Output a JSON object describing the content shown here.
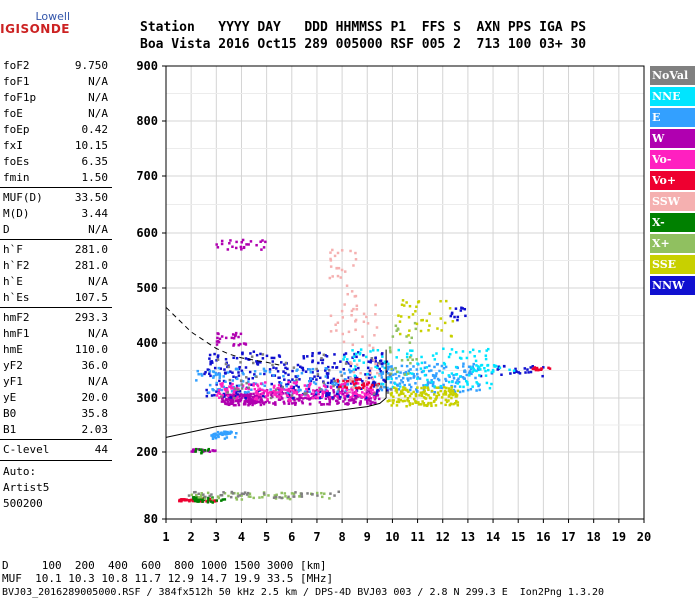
{
  "logo": {
    "line1": "Lowell",
    "line2": "DIGISONDE"
  },
  "header": {
    "labels_line": "Station   YYYY DAY   DDD HHMMSS P1  FFS S  AXN PPS IGA PS",
    "values_line": "Boa Vista 2016 Oct15 289 005000 RSF 005 2  713 100 03+ 30"
  },
  "params": {
    "group1": [
      {
        "name": "foF2",
        "value": "9.750"
      },
      {
        "name": "foF1",
        "value": "N/A"
      },
      {
        "name": "foF1p",
        "value": "N/A"
      },
      {
        "name": "foE",
        "value": "N/A"
      },
      {
        "name": "foEp",
        "value": "0.42"
      },
      {
        "name": "fxI",
        "value": "10.15"
      },
      {
        "name": "foEs",
        "value": "6.35"
      },
      {
        "name": "fmin",
        "value": "1.50"
      }
    ],
    "group2": [
      {
        "name": "MUF(D)",
        "value": "33.50"
      },
      {
        "name": "M(D)",
        "value": "3.44"
      },
      {
        "name": "D",
        "value": "N/A"
      }
    ],
    "group3": [
      {
        "name": "h`F",
        "value": "281.0"
      },
      {
        "name": "h`F2",
        "value": "281.0"
      },
      {
        "name": "h`E",
        "value": "N/A"
      },
      {
        "name": "h`Es",
        "value": "107.5"
      }
    ],
    "group4": [
      {
        "name": "hmF2",
        "value": "293.3"
      },
      {
        "name": "hmF1",
        "value": "N/A"
      },
      {
        "name": "hmE",
        "value": "110.0"
      },
      {
        "name": "yF2",
        "value": "36.0"
      },
      {
        "name": "yF1",
        "value": "N/A"
      },
      {
        "name": "yE",
        "value": "20.0"
      },
      {
        "name": "B0",
        "value": "35.8"
      },
      {
        "name": "B1",
        "value": "2.03"
      }
    ],
    "clevel": {
      "name": "C-level",
      "value": "44"
    },
    "auto": [
      "Auto:",
      "Artist5",
      "500200"
    ]
  },
  "legend": [
    {
      "label": "NoVal",
      "color": "#808080"
    },
    {
      "label": "NNE",
      "color": "#00e5ff"
    },
    {
      "label": "E",
      "color": "#33a0ff"
    },
    {
      "label": "W",
      "color": "#b000b0"
    },
    {
      "label": "Vo-",
      "color": "#ff20c0"
    },
    {
      "label": "Vo+",
      "color": "#ee0030"
    },
    {
      "label": "SSW",
      "color": "#f5b0b0"
    },
    {
      "label": "X-",
      "color": "#008000"
    },
    {
      "label": "X+",
      "color": "#90c060"
    },
    {
      "label": "SSE",
      "color": "#c8d000"
    },
    {
      "label": "NNW",
      "color": "#1010d0"
    }
  ],
  "footer": {
    "d_line": "D     100  200  400  600  800 1000 1500 3000 [km]",
    "muf_line": "MUF  10.1 10.3 10.8 11.7 12.9 14.7 19.9 33.5 [MHz]",
    "file_line": "BVJ03_2016289005000.RSF / 384fx512h 50 kHz 2.5 km / DPS-4D BVJ03 003 / 2.8 N 299.3 E  Ion2Png 1.3.20"
  },
  "chart_data": {
    "type": "scatter",
    "xlim": [
      1,
      20
    ],
    "ylim": [
      80,
      900
    ],
    "xticks": [
      1,
      2,
      3,
      4,
      5,
      6,
      7,
      8,
      9,
      10,
      11,
      12,
      13,
      14,
      15,
      16,
      17,
      18,
      19,
      20
    ],
    "yticks": [
      80,
      200,
      300,
      400,
      500,
      600,
      700,
      800,
      900
    ],
    "grid": true,
    "legend_placement": "right",
    "series": [
      {
        "name": "W",
        "color": "#b000b0",
        "clusters": [
          {
            "x": [
              3.2,
              4.8
            ],
            "y": [
              287,
              308
            ],
            "n": 140
          },
          {
            "x": [
              4.5,
              9.5
            ],
            "y": [
              288,
              315
            ],
            "n": 200
          },
          {
            "x": [
              3,
              5
            ],
            "y": [
              570,
              590
            ],
            "n": 25
          },
          {
            "x": [
              3,
              4.3
            ],
            "y": [
              395,
              420
            ],
            "n": 25
          },
          {
            "x": [
              2,
              3
            ],
            "y": [
              201,
              206
            ],
            "n": 20
          }
        ]
      },
      {
        "name": "NNW",
        "color": "#1010d0",
        "clusters": [
          {
            "x": [
              2.5,
              9.8
            ],
            "y": [
              300,
              385
            ],
            "n": 300
          },
          {
            "x": [
              12.3,
              12.9
            ],
            "y": [
              440,
              470
            ],
            "n": 12
          },
          {
            "x": [
              13.5,
              16
            ],
            "y": [
              340,
              360
            ],
            "n": 25
          }
        ]
      },
      {
        "name": "E",
        "color": "#33a0ff",
        "clusters": [
          {
            "x": [
              2,
              8.5
            ],
            "y": [
              310,
              355
            ],
            "n": 120
          },
          {
            "x": [
              9.5,
              13.5
            ],
            "y": [
              310,
              365
            ],
            "n": 160
          },
          {
            "x": [
              2.8,
              3.8
            ],
            "y": [
              225,
              238
            ],
            "n": 40
          }
        ]
      },
      {
        "name": "NNE",
        "color": "#00e5ff",
        "clusters": [
          {
            "x": [
              8,
              14
            ],
            "y": [
              318,
              390
            ],
            "n": 120
          },
          {
            "x": [
              13,
              15
            ],
            "y": [
              345,
              360
            ],
            "n": 20
          }
        ]
      },
      {
        "name": "Vo-",
        "color": "#ff20c0",
        "clusters": [
          {
            "x": [
              3,
              9.3
            ],
            "y": [
              300,
              330
            ],
            "n": 140
          },
          {
            "x": [
              3,
              6
            ],
            "y": [
              295,
              318
            ],
            "n": 40
          }
        ]
      },
      {
        "name": "Vo+",
        "color": "#ee0030",
        "clusters": [
          {
            "x": [
              1.5,
              3
            ],
            "y": [
              112,
              117
            ],
            "n": 60
          },
          {
            "x": [
              15.5,
              16.3
            ],
            "y": [
              348,
              356
            ],
            "n": 12
          },
          {
            "x": [
              7.5,
              9.5
            ],
            "y": [
              318,
              335
            ],
            "n": 30
          }
        ]
      },
      {
        "name": "SSW",
        "color": "#f5b0b0",
        "clusters": [
          {
            "x": [
              7.5,
              8.6
            ],
            "y": [
              400,
              580
            ],
            "n": 40
          },
          {
            "x": [
              8.2,
              9.5
            ],
            "y": [
              310,
              470
            ],
            "n": 40
          }
        ]
      },
      {
        "name": "X-",
        "color": "#008000",
        "clusters": [
          {
            "x": [
              2,
              3.4
            ],
            "y": [
              110,
              120
            ],
            "n": 30
          },
          {
            "x": [
              2,
              3
            ],
            "y": [
              198,
              206
            ],
            "n": 10
          }
        ]
      },
      {
        "name": "X+",
        "color": "#90c060",
        "clusters": [
          {
            "x": [
              2,
              7.5
            ],
            "y": [
              115,
              128
            ],
            "n": 50
          },
          {
            "x": [
              9.8,
              11
            ],
            "y": [
              340,
              440
            ],
            "n": 25
          }
        ]
      },
      {
        "name": "SSE",
        "color": "#c8d000",
        "clusters": [
          {
            "x": [
              9.8,
              12.6
            ],
            "y": [
              285,
              320
            ],
            "n": 150
          },
          {
            "x": [
              10.2,
              12.5
            ],
            "y": [
              410,
              480
            ],
            "n": 35
          }
        ]
      },
      {
        "name": "NoVal",
        "color": "#808080",
        "clusters": [
          {
            "x": [
              1.8,
              8
            ],
            "y": [
              118,
              130
            ],
            "n": 40
          },
          {
            "x": [
              3,
              10
            ],
            "y": [
              300,
              380
            ],
            "n": 50
          }
        ]
      }
    ],
    "profile_curve": {
      "x": [
        1,
        3,
        5,
        7,
        8,
        9,
        9.5,
        9.75
      ],
      "y": [
        227,
        247,
        260,
        272,
        278,
        284,
        290,
        300
      ]
    },
    "profile_spike": {
      "x": [
        9.75,
        9.75
      ],
      "y": [
        300,
        388
      ]
    },
    "dashed_curve": {
      "x": [
        1,
        2,
        3,
        3.5,
        4,
        4.5,
        5,
        5.5
      ],
      "y": [
        465,
        420,
        390,
        380,
        373,
        369,
        365,
        360
      ]
    }
  }
}
